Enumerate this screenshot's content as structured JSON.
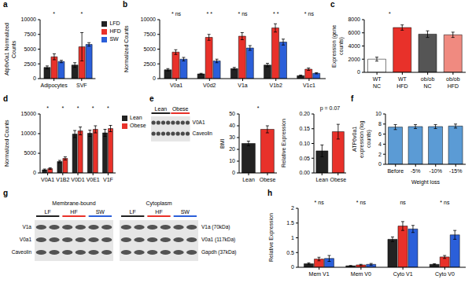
{
  "chart_data": [
    {
      "panel": "a",
      "type": "bar",
      "ylabel": "Atp6v0a1 Normalized Counts",
      "categories": [
        "Adipocytes",
        "SVF"
      ],
      "series": [
        {
          "name": "LFD",
          "color": "#222222",
          "values": [
            1900,
            2300
          ],
          "errors": [
            250,
            400
          ]
        },
        {
          "name": "HFD",
          "color": "#e8312a",
          "values": [
            3700,
            5400
          ],
          "errors": [
            500,
            2400
          ]
        },
        {
          "name": "SW",
          "color": "#2b5fd9",
          "values": [
            2900,
            5800
          ],
          "errors": [
            200,
            300
          ]
        }
      ],
      "ylim": [
        0,
        10000
      ],
      "yticks": [
        0,
        2500,
        5000,
        7500,
        10000
      ],
      "legend": "right",
      "annotations": [
        {
          "text": "*",
          "categories": [
            "Adipocytes"
          ]
        },
        {
          "text": "*",
          "categories": [
            "SVF"
          ]
        }
      ]
    },
    {
      "panel": "b",
      "type": "bar",
      "ylabel": "Normalized Counts",
      "categories": [
        "V0a1",
        "V0d2",
        "V1a",
        "V1b2",
        "V1c1"
      ],
      "series": [
        {
          "name": "LFD",
          "color": "#222222",
          "values": [
            1500,
            800,
            1700,
            2300,
            500
          ],
          "errors": [
            200,
            100,
            200,
            300,
            100
          ]
        },
        {
          "name": "HFD",
          "color": "#e8312a",
          "values": [
            4500,
            7000,
            7200,
            8600,
            1600
          ],
          "errors": [
            400,
            500,
            600,
            700,
            200
          ]
        },
        {
          "name": "SW",
          "color": "#2b5fd9",
          "values": [
            3300,
            3000,
            5200,
            6200,
            900
          ],
          "errors": [
            300,
            300,
            400,
            500,
            100
          ]
        }
      ],
      "ylim": [
        0,
        10000
      ],
      "yticks": [
        0,
        2500,
        5000,
        7500,
        10000
      ],
      "annotations": [
        {
          "text": "* ns",
          "categories": [
            "V0a1"
          ]
        },
        {
          "text": "* *",
          "categories": [
            "V0d2"
          ]
        },
        {
          "text": "* ns",
          "categories": [
            "V1a"
          ]
        },
        {
          "text": "* *",
          "categories": [
            "V1b2"
          ]
        },
        {
          "text": "* ns",
          "categories": [
            "V1c1"
          ]
        }
      ]
    },
    {
      "panel": "c",
      "type": "bar",
      "ylabel": "Expression (gene counts)",
      "categories": [
        "WT NC",
        "WT HFD",
        "ob/ob NC",
        "ob/ob HFD"
      ],
      "values": [
        2000,
        6800,
        5800,
        5700
      ],
      "errors": [
        300,
        400,
        500,
        400
      ],
      "colors": [
        "#ffffff",
        "#e8312a",
        "#555555",
        "#f08a80"
      ],
      "ylim": [
        0,
        8000
      ],
      "yticks": [
        0,
        2000,
        4000,
        6000,
        8000
      ],
      "annotations": [
        {
          "text": "*",
          "categories": [
            "WT NC",
            "WT HFD"
          ]
        }
      ]
    },
    {
      "panel": "d",
      "type": "bar",
      "ylabel": "Normalized Counts",
      "categories": [
        "V0A1",
        "V1B2",
        "V0D1",
        "V0E1",
        "V1F"
      ],
      "series": [
        {
          "name": "Lean",
          "color": "#222222",
          "values": [
            800,
            2900,
            9900,
            10100,
            10200
          ],
          "errors": [
            200,
            300,
            900,
            800,
            900
          ]
        },
        {
          "name": "Obese",
          "color": "#e8312a",
          "values": [
            1100,
            3700,
            10700,
            11100,
            11300
          ],
          "errors": [
            200,
            400,
            1000,
            900,
            800
          ]
        }
      ],
      "ylim": [
        0,
        15000
      ],
      "yticks": [
        0,
        5000,
        10000,
        15000
      ],
      "legend": "right",
      "annotations": [
        {
          "text": "*",
          "categories": [
            "V0A1"
          ]
        },
        {
          "text": "*",
          "categories": [
            "V1B2"
          ]
        },
        {
          "text": "*",
          "categories": [
            "V0D1"
          ]
        },
        {
          "text": "*",
          "categories": [
            "V0E1"
          ]
        },
        {
          "text": "*",
          "categories": [
            "V1F"
          ]
        }
      ]
    },
    {
      "type": "bar",
      "ylabel": "BMI",
      "categories": [
        "Lean",
        "Obese"
      ],
      "values": [
        25,
        37
      ],
      "errors": [
        2,
        3
      ],
      "colors": [
        "#222222",
        "#e8312a"
      ],
      "ylim": [
        0,
        50
      ],
      "yticks": [
        0,
        10,
        20,
        30,
        40,
        50
      ],
      "annotations": [
        {
          "text": "*",
          "categories": [
            "Lean",
            "Obese"
          ]
        }
      ]
    },
    {
      "type": "bar",
      "ylabel": "Relative Expression",
      "categories": [
        "Lean",
        "Obese"
      ],
      "values": [
        0.075,
        0.14
      ],
      "errors": [
        0.02,
        0.025
      ],
      "colors": [
        "#222222",
        "#e8312a"
      ],
      "ylim": [
        0,
        0.2
      ],
      "yticks": [
        {
          "value": 0,
          "label": "0.00"
        },
        {
          "value": 0.05,
          "label": "0.05"
        },
        {
          "value": 0.1,
          "label": "0.10"
        },
        {
          "value": 0.15,
          "label": "0.15"
        },
        {
          "value": 0.2,
          "label": "0.20"
        }
      ],
      "annotations": [
        {
          "text": "p = 0.07",
          "categories": [
            "Lean",
            "Obese"
          ]
        }
      ]
    },
    {
      "panel": "f",
      "type": "bar",
      "ylabel": "ATP6v0a1 expression (log counts)",
      "xlabel": "Weight loss",
      "categories": [
        "Before",
        "-5%",
        "-10%",
        "-15%"
      ],
      "values": [
        7.4,
        7.5,
        7.5,
        7.6
      ],
      "errors": [
        0.5,
        0.4,
        0.4,
        0.4
      ],
      "color": "#5b9bd5",
      "ylim": [
        0,
        10
      ],
      "yticks": [
        0,
        2,
        4,
        6,
        8,
        10
      ]
    },
    {
      "panel": "h",
      "type": "bar",
      "ylabel": "Relative Expression",
      "categories": [
        "Mem V1",
        "Mem V0",
        "Cyto V1",
        "Cyto V0"
      ],
      "series": [
        {
          "name": "LF",
          "color": "#222222",
          "values": [
            0.12,
            0.05,
            0.95,
            0.1
          ],
          "errors": [
            0.03,
            0.01,
            0.08,
            0.02
          ]
        },
        {
          "name": "HF",
          "color": "#e8312a",
          "values": [
            0.28,
            0.08,
            1.4,
            0.35
          ],
          "errors": [
            0.06,
            0.02,
            0.15,
            0.05
          ]
        },
        {
          "name": "SW",
          "color": "#2b5fd9",
          "values": [
            0.3,
            0.1,
            1.3,
            1.1
          ],
          "errors": [
            0.1,
            0.03,
            0.12,
            0.15
          ]
        }
      ],
      "ylim": [
        0,
        2
      ],
      "yticks": [
        0,
        0.5,
        1,
        1.5,
        2
      ],
      "annotations": [
        {
          "text": "* ns",
          "categories": [
            "Mem V1"
          ]
        },
        {
          "text": "* ns",
          "categories": [
            "Mem V0"
          ]
        },
        {
          "text": "ns",
          "categories": [
            "Cyto V1"
          ]
        },
        {
          "text": "* ns",
          "categories": [
            "Cyto V0"
          ]
        }
      ]
    }
  ],
  "blots": [
    {
      "panel": "e",
      "groups": [
        {
          "name": "Lean",
          "color": "#222222",
          "lanes": 4
        },
        {
          "name": "Obese",
          "color": "#e8312a",
          "lanes": 4
        }
      ],
      "rows": [
        "V0A1",
        "Caveolin"
      ]
    },
    {
      "panel": "g",
      "lanes": [
        {
          "name": "LF",
          "color": "#222222"
        },
        {
          "name": "HF",
          "color": "#e8312a"
        },
        {
          "name": "SW",
          "color": "#2b5fd9"
        }
      ],
      "sections": [
        {
          "title": "Membrane-bound"
        },
        {
          "title": "Cytoplasm"
        }
      ],
      "rows_left": [
        "V1a",
        "V0a1",
        "Caveolin"
      ],
      "rows_right": [
        "V1a (70kDa)",
        "V0a1 (117kDa)",
        "Gapdh (37kDa)"
      ]
    }
  ]
}
